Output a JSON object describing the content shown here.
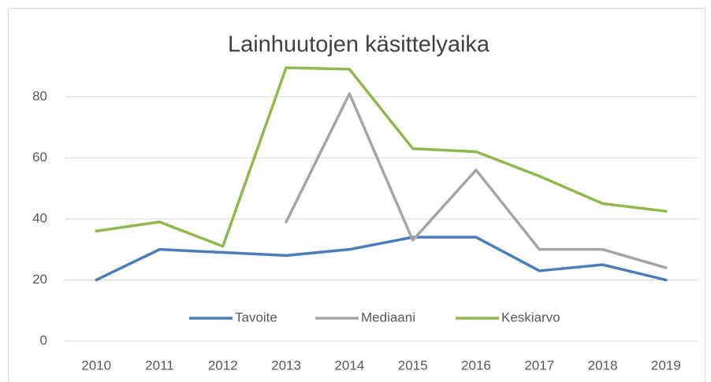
{
  "chart_data": {
    "type": "line",
    "title": "Lainhuutojen käsittelyaika",
    "categories": [
      "2010",
      "2011",
      "2012",
      "2013",
      "2014",
      "2015",
      "2016",
      "2017",
      "2018",
      "2019"
    ],
    "series": [
      {
        "name": "Tavoite",
        "color": "#4a7ebb",
        "values": [
          20,
          30,
          29,
          28,
          30,
          34,
          34,
          23,
          25,
          20
        ]
      },
      {
        "name": "Mediaani",
        "color": "#a5a5a5",
        "values": [
          null,
          null,
          null,
          39,
          81,
          33,
          56,
          30,
          30,
          24
        ]
      },
      {
        "name": "Keskiarvo",
        "color": "#8fb84e",
        "values": [
          36,
          39,
          31,
          89.5,
          89,
          63,
          62,
          54,
          45,
          42.5
        ]
      }
    ],
    "ylim": [
      0,
      90
    ],
    "yticks": [
      0,
      20,
      40,
      60,
      80
    ],
    "grid": true,
    "legend": "bottom"
  }
}
